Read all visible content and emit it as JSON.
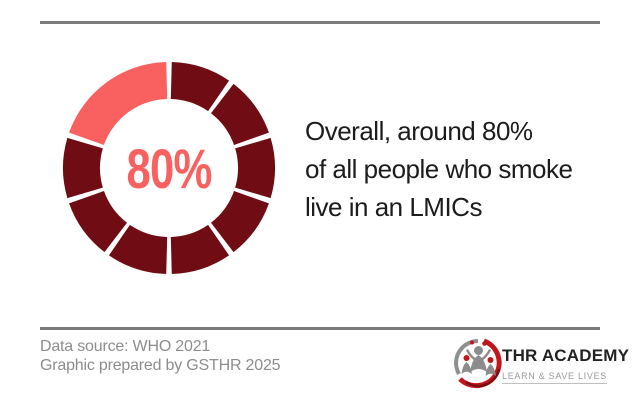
{
  "theme": {
    "background": "#FFFFFF",
    "accent_coral": "#F8615F",
    "dark_red": "#700D14",
    "rule_gray": "#7B7B7B",
    "headline_text": "#1C1C1C",
    "footer_text": "#8D8D8D",
    "logo_red": "#C3161C",
    "logo_dark_red": "#7E0D12",
    "logo_gray": "#8C8C8C",
    "logo_title": "#222222",
    "logo_tagline": "#9A9A9A"
  },
  "chart_data": {
    "type": "donut",
    "title": "Share of all people who smoke living in LMICs",
    "center_label": "80%",
    "highlight_share_pct": 80,
    "total": 100,
    "start_angle_deg": 0,
    "direction": "clockwise",
    "gap_deg": 3,
    "outer_radius": 106,
    "inner_radius": 69,
    "segments": [
      {
        "name": "lmic-share-1",
        "value": 10,
        "color": "#700D14"
      },
      {
        "name": "lmic-share-2",
        "value": 10,
        "color": "#700D14"
      },
      {
        "name": "lmic-share-3",
        "value": 10,
        "color": "#700D14"
      },
      {
        "name": "lmic-share-4",
        "value": 10,
        "color": "#700D14"
      },
      {
        "name": "lmic-share-5",
        "value": 10,
        "color": "#700D14"
      },
      {
        "name": "lmic-share-6",
        "value": 10,
        "color": "#700D14"
      },
      {
        "name": "lmic-share-7",
        "value": 10,
        "color": "#700D14"
      },
      {
        "name": "lmic-share-8",
        "value": 10,
        "color": "#700D14"
      },
      {
        "name": "other-share",
        "value": 20,
        "color": "#F8615F"
      }
    ]
  },
  "headline": {
    "lines": [
      "Overall, around 80%",
      "of all people who smoke",
      "live in an LMICs"
    ]
  },
  "footer": {
    "line1": "Data source: WHO 2021",
    "line2": "Graphic prepared by GSTHR 2025"
  },
  "logo": {
    "title": "THR ACADEMY",
    "tagline": "LEARN & SAVE LIVES"
  }
}
